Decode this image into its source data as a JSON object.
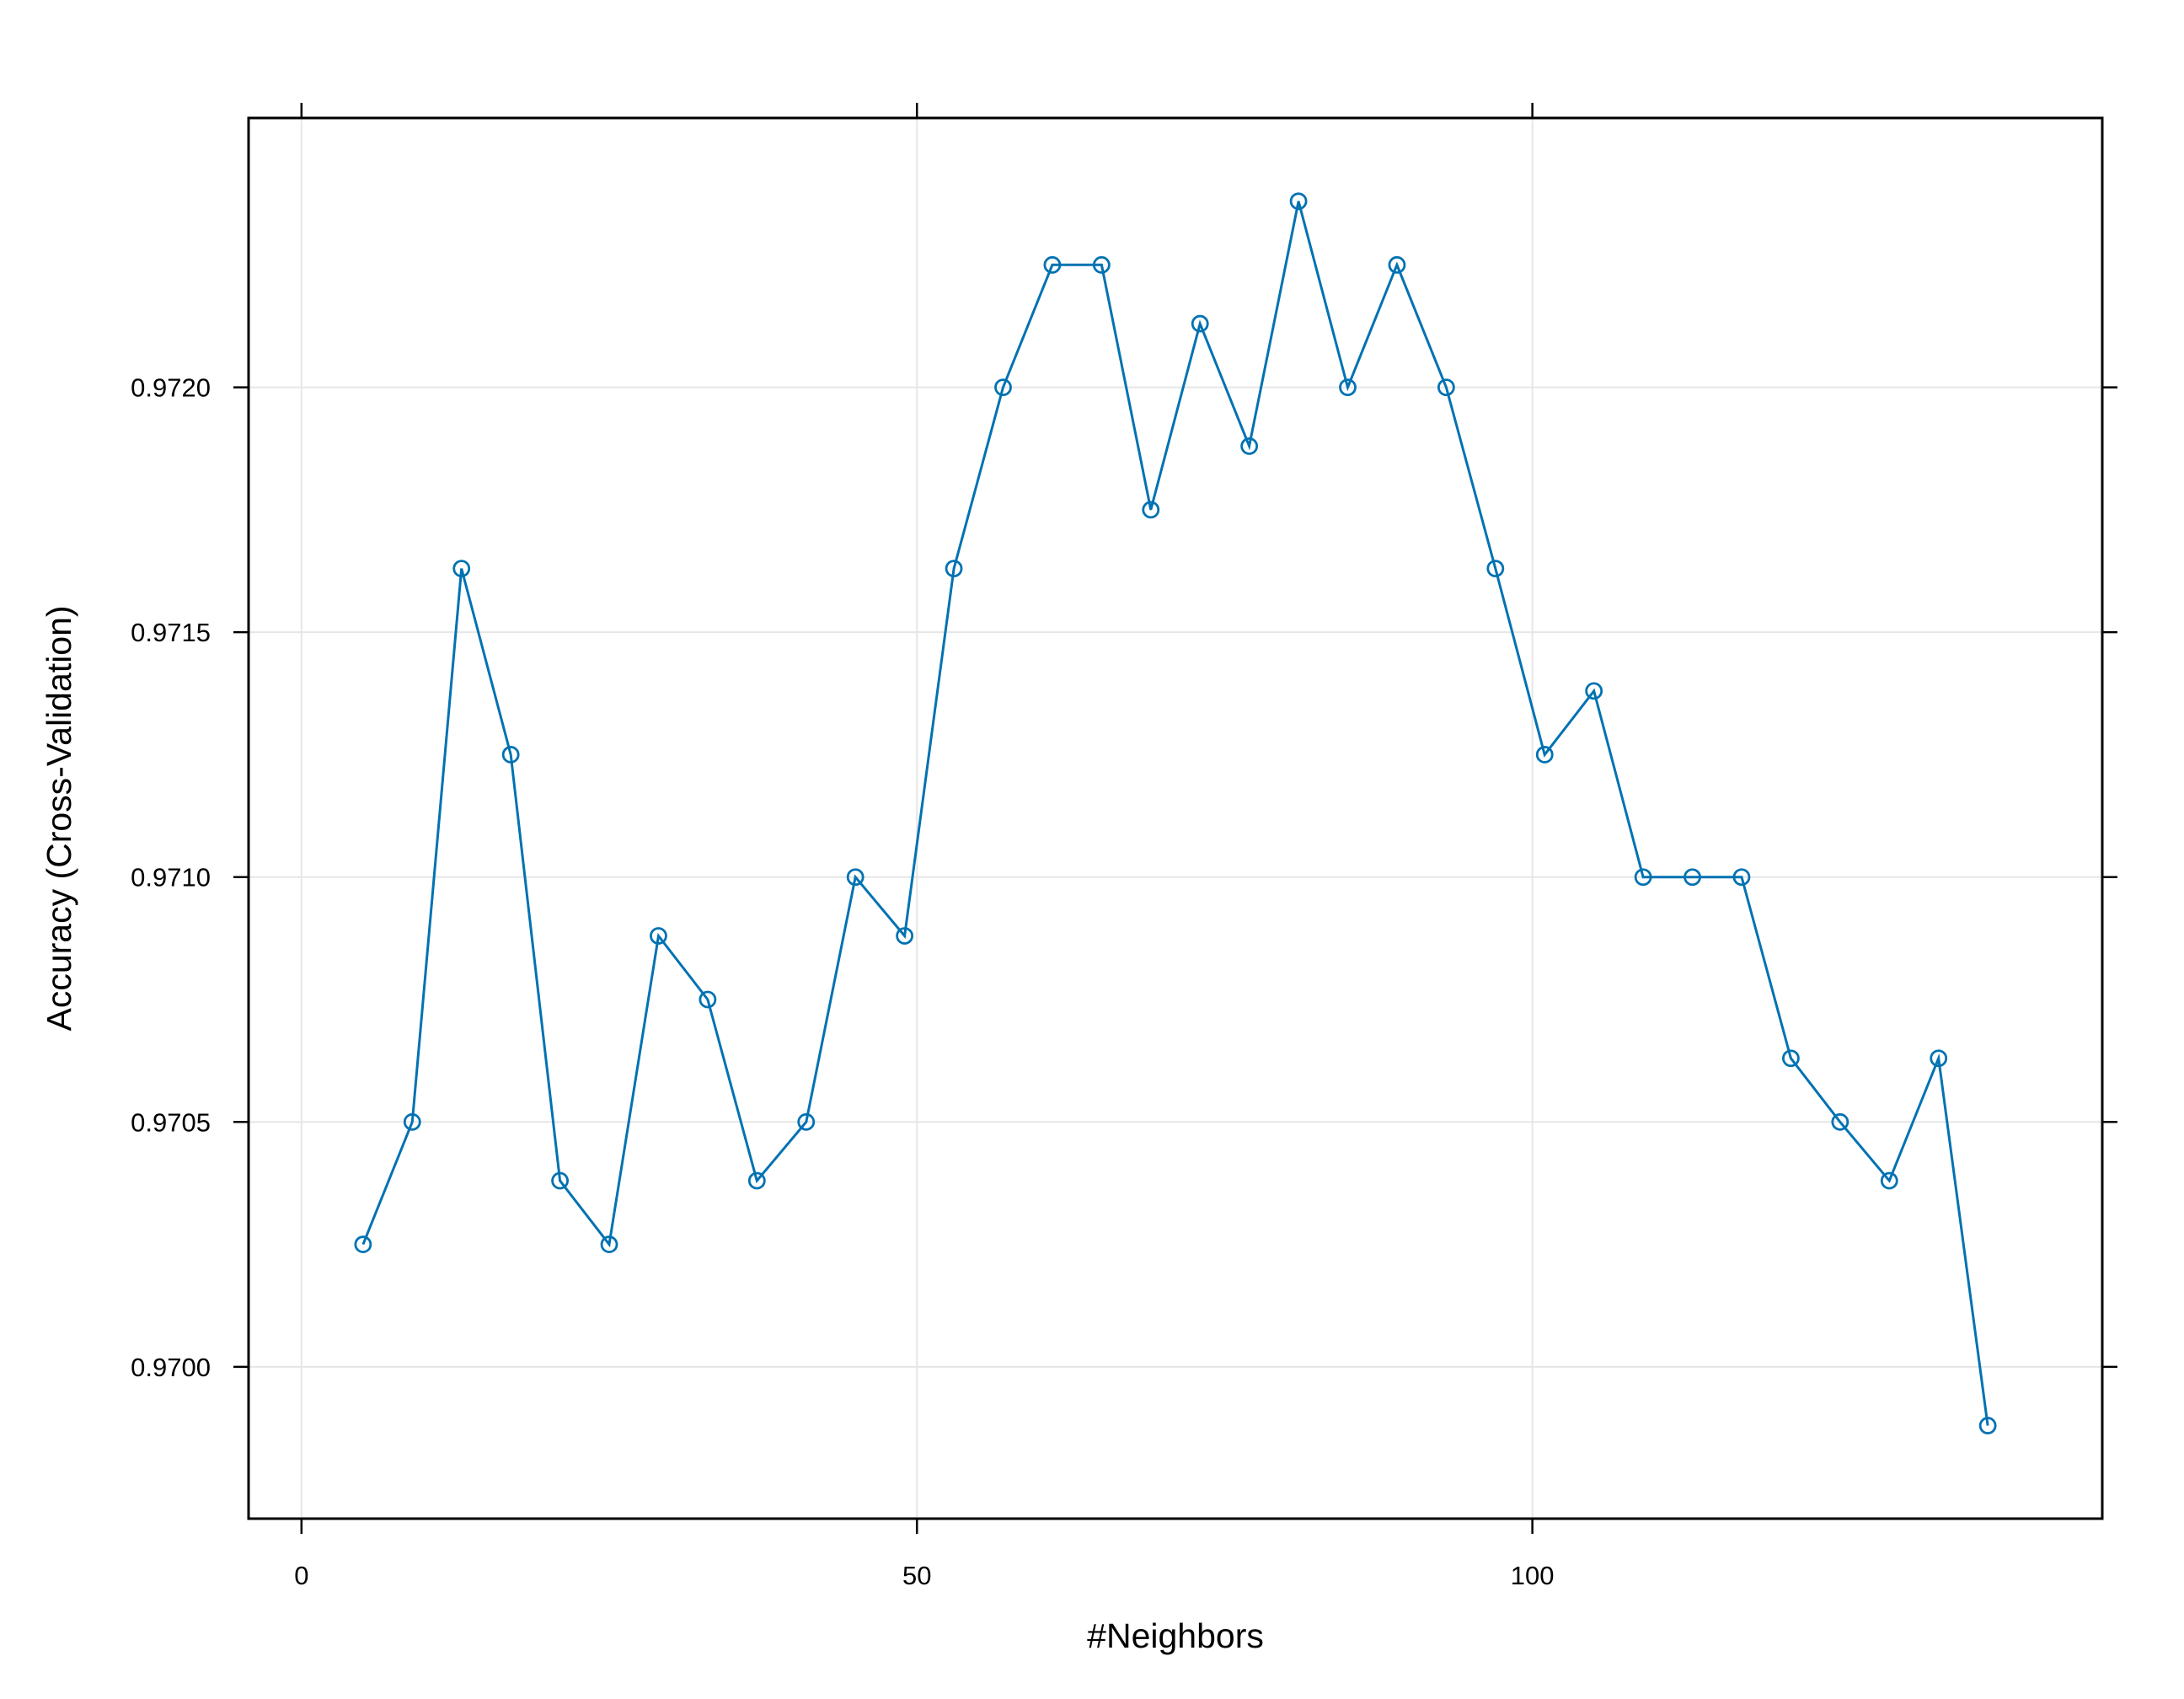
{
  "chart_data": {
    "type": "line",
    "title": "",
    "xlabel": "#Neighbors",
    "ylabel": "Accuracy (Cross-Validation)",
    "xlim": [
      -4.3,
      146.3
    ],
    "ylim": [
      0.96969,
      0.97255
    ],
    "xticks": [
      0,
      50,
      100
    ],
    "xtick_labels": [
      "0",
      "50",
      "100"
    ],
    "yticks": [
      0.97,
      0.9705,
      0.971,
      0.9715,
      0.972
    ],
    "ytick_labels": [
      "0.9700",
      "0.9705",
      "0.9710",
      "0.9715",
      "0.9720"
    ],
    "grid": true,
    "series": [
      {
        "color": "#0072B2",
        "marker": "open-circle",
        "x": [
          5,
          9,
          13,
          17,
          21,
          25,
          29,
          33,
          37,
          41,
          45,
          49,
          53,
          57,
          61,
          65,
          69,
          73,
          77,
          81,
          85,
          89,
          93,
          97,
          101,
          105,
          109,
          113,
          117,
          121,
          125,
          129,
          133,
          137
        ],
        "y": [
          0.97025,
          0.9705,
          0.97163,
          0.97125,
          0.97038,
          0.97025,
          0.97088,
          0.97075,
          0.97038,
          0.9705,
          0.971,
          0.97088,
          0.97163,
          0.972,
          0.97225,
          0.97225,
          0.97175,
          0.97213,
          0.97188,
          0.97238,
          0.972,
          0.97225,
          0.972,
          0.97163,
          0.97125,
          0.97138,
          0.971,
          0.971,
          0.971,
          0.97063,
          0.9705,
          0.97038,
          0.97063,
          0.96988
        ]
      }
    ]
  },
  "colors": {
    "series": "#0072B2",
    "grid": "#e6e6e6",
    "frame": "#000000"
  }
}
